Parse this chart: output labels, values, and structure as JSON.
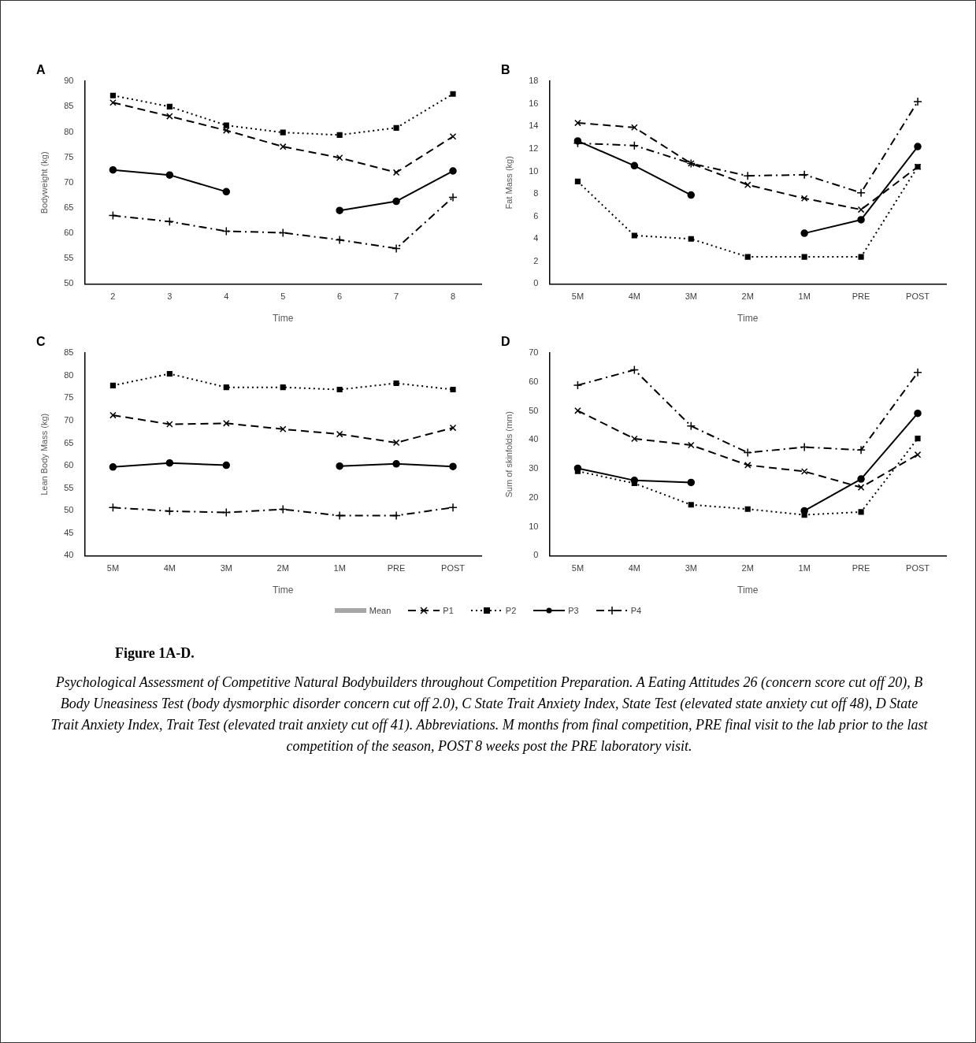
{
  "chart_data": [
    {
      "type": "line",
      "title": "A",
      "xlabel": "Time",
      "ylabel": "Bodyweight (kg)",
      "categories": [
        "2",
        "3",
        "4",
        "5",
        "6",
        "7",
        "8"
      ],
      "ylim": [
        50,
        90
      ],
      "yticks": [
        50,
        55,
        60,
        65,
        70,
        75,
        80,
        85,
        90
      ],
      "grid": false,
      "legend": "bottom",
      "series": [
        {
          "name": "Mean",
          "type": "bar",
          "color": "#a6a6a6",
          "values": [
            null,
            null,
            null,
            null,
            null,
            null,
            null
          ]
        },
        {
          "name": "P1",
          "color": "#000000",
          "marker": "cross",
          "line_style": "dashed",
          "values": [
            85.8,
            83.1,
            80.3,
            77.1,
            74.9,
            72.0,
            79.1
          ]
        },
        {
          "name": "P2",
          "color": "#000000",
          "marker": "square",
          "line_style": "dotted",
          "values": [
            87.2,
            85.0,
            81.3,
            79.9,
            79.4,
            80.8,
            87.5
          ]
        },
        {
          "name": "P3",
          "color": "#000000",
          "marker": "circle",
          "line_style": "solid",
          "values": [
            72.5,
            71.5,
            68.2,
            null,
            64.5,
            66.3,
            72.3
          ]
        },
        {
          "name": "P4",
          "color": "#000000",
          "marker": "plus",
          "line_style": "dashdot",
          "values": [
            63.5,
            62.3,
            60.4,
            60.1,
            58.7,
            57.0,
            67.1
          ]
        }
      ]
    },
    {
      "type": "line",
      "title": "B",
      "xlabel": "Time",
      "ylabel": "Fat Mass (kg)",
      "categories": [
        "5M",
        "4M",
        "3M",
        "2M",
        "1M",
        "PRE",
        "POST"
      ],
      "ylim": [
        0,
        18
      ],
      "yticks": [
        0,
        2,
        4,
        6,
        8,
        10,
        12,
        14,
        16,
        18
      ],
      "grid": false,
      "series": [
        {
          "color": "#000000",
          "marker": "cross",
          "line_style": "dashed",
          "values": [
            14.3,
            13.9,
            10.7,
            8.8,
            7.6,
            6.6,
            10.4
          ]
        },
        {
          "color": "#000000",
          "marker": "square",
          "line_style": "dotted",
          "values": [
            9.1,
            4.3,
            4.0,
            2.4,
            2.4,
            2.4,
            10.4
          ]
        },
        {
          "color": "#000000",
          "marker": "circle",
          "line_style": "solid",
          "values": [
            12.7,
            10.5,
            7.9,
            null,
            4.5,
            5.7,
            12.2
          ]
        },
        {
          "color": "#000000",
          "marker": "plus",
          "line_style": "dashdot",
          "values": [
            12.5,
            12.3,
            10.7,
            9.6,
            9.7,
            8.1,
            16.2
          ]
        }
      ]
    },
    {
      "type": "line",
      "title": "C",
      "xlabel": "Time",
      "ylabel": "Lean Body Mass (kg)",
      "categories": [
        "5M",
        "4M",
        "3M",
        "2M",
        "1M",
        "PRE",
        "POST"
      ],
      "ylim": [
        40,
        85
      ],
      "yticks": [
        40,
        45,
        50,
        55,
        60,
        65,
        70,
        75,
        80,
        85
      ],
      "grid": false,
      "series": [
        {
          "color": "#000000",
          "marker": "cross",
          "line_style": "dashed",
          "values": [
            71.2,
            69.2,
            69.4,
            68.1,
            67.0,
            65.1,
            68.4
          ]
        },
        {
          "color": "#000000",
          "marker": "square",
          "line_style": "dotted",
          "values": [
            77.8,
            80.4,
            77.4,
            77.4,
            76.9,
            78.3,
            76.9
          ]
        },
        {
          "color": "#000000",
          "marker": "circle",
          "line_style": "solid",
          "values": [
            59.7,
            60.6,
            60.1,
            null,
            59.9,
            60.4,
            59.8
          ]
        },
        {
          "color": "#000000",
          "marker": "plus",
          "line_style": "dashdot",
          "values": [
            50.7,
            49.9,
            49.6,
            50.3,
            48.9,
            48.9,
            50.7
          ]
        }
      ]
    },
    {
      "type": "line",
      "title": "D",
      "xlabel": "Time",
      "ylabel": "Sum of skinfolds (mm)",
      "categories": [
        "5M",
        "4M",
        "3M",
        "2M",
        "1M",
        "PRE",
        "POST"
      ],
      "ylim": [
        0,
        70
      ],
      "yticks": [
        0,
        10,
        20,
        30,
        40,
        50,
        60,
        70
      ],
      "grid": false,
      "annotations": [
        "Figure 1A-D.",
        "Psychological Assessment of Competitive Natural Bodybuilders throughout Competition Preparation. A Eating Attitudes 26 (concern score cut off 20), B Body Uneasiness Test (body dysmorphic disorder concern cut off 2.0), C  State Trait Anxiety Index, State Test (elevated state anxiety cut off 48), D State Trait Anxiety Index, Trait Test (elevated trait anxiety cut off 41).  Abbreviations. M months from final competition, PRE final visit to the lab prior to the last competition of the season, POST 8 weeks post the PRE laboratory visit."
      ],
      "series": [
        {
          "color": "#000000",
          "marker": "cross",
          "line_style": "dashed",
          "values": [
            50.1,
            40.4,
            38.2,
            31.3,
            29.1,
            23.6,
            34.9
          ]
        },
        {
          "color": "#000000",
          "marker": "square",
          "line_style": "dotted",
          "values": [
            29.2,
            25.0,
            17.6,
            16.1,
            14.1,
            15.1,
            40.5
          ]
        },
        {
          "color": "#000000",
          "marker": "circle",
          "line_style": "solid",
          "values": [
            30.2,
            26.0,
            25.3,
            null,
            15.5,
            26.5,
            49.2
          ]
        },
        {
          "color": "#000000",
          "marker": "plus",
          "line_style": "dashdot",
          "values": [
            58.9,
            64.2,
            44.8,
            35.6,
            37.5,
            36.5,
            63.3
          ]
        }
      ]
    }
  ]
}
